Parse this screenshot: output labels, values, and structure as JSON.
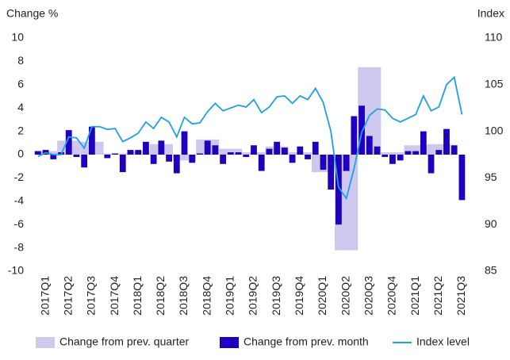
{
  "chart_data": {
    "type": "bar-line",
    "y_label": "Change %",
    "y2_label": "Index",
    "categories": [
      null,
      "2017Q1",
      null,
      null,
      "2017Q2",
      null,
      null,
      "2017Q3",
      null,
      null,
      "2017Q4",
      null,
      null,
      "2018Q1",
      null,
      null,
      "2018Q2",
      null,
      null,
      "2018Q3",
      null,
      null,
      "2018Q4",
      null,
      null,
      "2019Q1",
      null,
      null,
      "2019Q2",
      null,
      null,
      "2019Q3",
      null,
      null,
      "2019Q4",
      null,
      null,
      "2020Q1",
      null,
      null,
      "2020Q2",
      null,
      null,
      "2020Q3",
      null,
      null,
      "2020Q4",
      null,
      null,
      "2021Q1",
      null,
      null,
      "2021Q2",
      null,
      null,
      "2021Q3",
      null
    ],
    "series": [
      {
        "name": "Change from prev. quarter",
        "color": "#cfc8ee",
        "kind": "quarter-bar",
        "values": [
          null,
          0.3,
          null,
          null,
          1.2,
          null,
          null,
          1.1,
          null,
          null,
          0.1,
          null,
          null,
          0.3,
          null,
          null,
          0.9,
          null,
          null,
          -0.5,
          null,
          null,
          1.3,
          null,
          null,
          0.5,
          null,
          null,
          0.2,
          null,
          null,
          0.7,
          null,
          null,
          0.2,
          null,
          null,
          -1.5,
          null,
          null,
          -8.2,
          null,
          null,
          7.5,
          null,
          null,
          0.2,
          null,
          null,
          0.8,
          null,
          null,
          0.9,
          null,
          null,
          null,
          null
        ]
      },
      {
        "name": "Change from prev. month",
        "color": "#1e00be",
        "kind": "bar",
        "values": [
          0.3,
          0.4,
          -0.4,
          0.2,
          2.1,
          -0.2,
          -1.1,
          2.4,
          0,
          -0.3,
          0.1,
          -1.5,
          0.4,
          0.4,
          1.1,
          -0.8,
          1.2,
          -0.6,
          -1.6,
          2.0,
          -0.7,
          0.1,
          1.2,
          0.8,
          -0.8,
          0.2,
          0.2,
          -0.2,
          0.8,
          -1.4,
          0.5,
          1.1,
          0.6,
          -0.7,
          0.7,
          -0.4,
          1.1,
          -1.3,
          -3.0,
          -6.0,
          -1.4,
          3.3,
          4.2,
          1.6,
          0.7,
          -0.2,
          -0.8,
          -0.5,
          0.3,
          0.3,
          2.0,
          -1.6,
          0.4,
          2.2,
          0.8,
          -3.9,
          null
        ]
      },
      {
        "name": "Index level",
        "color": "#1ea0e6",
        "kind": "line",
        "axis": "y2",
        "values": [
          97.3,
          97.7,
          97.5,
          97.5,
          99.4,
          99.3,
          98.2,
          100.5,
          100.5,
          100.2,
          100.3,
          98.9,
          99.3,
          99.8,
          101.0,
          100.3,
          101.5,
          101.0,
          99.4,
          101.5,
          100.8,
          100.9,
          102.1,
          103.0,
          102.2,
          102.5,
          102.8,
          102.6,
          103.4,
          102.0,
          102.6,
          103.7,
          103.8,
          103.0,
          103.8,
          103.4,
          104.6,
          103.1,
          100.0,
          94.0,
          92.8,
          96.0,
          99.9,
          101.7,
          102.4,
          102.3,
          101.4,
          101.0,
          101.4,
          101.8,
          103.8,
          102.2,
          102.6,
          105.0,
          105.8,
          101.8,
          null
        ]
      }
    ],
    "ylim": [
      -10,
      10
    ],
    "yticks": [
      -10,
      -8,
      -6,
      -4,
      -2,
      0,
      2,
      4,
      6,
      8,
      10
    ],
    "y2lim": [
      85,
      110
    ],
    "y2ticks": [
      85,
      90,
      95,
      100,
      105,
      110
    ],
    "grid": false,
    "legend": "bottom"
  }
}
